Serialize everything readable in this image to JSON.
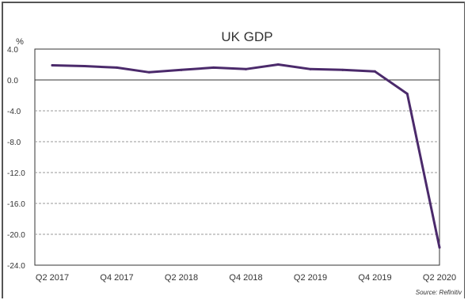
{
  "chart_data": {
    "type": "line",
    "title": "UK GDP",
    "y_unit_label": "%",
    "ylim": [
      -24.0,
      4.0
    ],
    "y_ticks": [
      "4.0",
      "0.0",
      "-4.0",
      "-8.0",
      "-12.0",
      "-16.0",
      "-20.0",
      "-24.0"
    ],
    "y_tick_values": [
      4,
      0,
      -4,
      -8,
      -12,
      -16,
      -20,
      -24
    ],
    "x": [
      "Q2 2017",
      "Q3 2017",
      "Q4 2017",
      "Q1 2018",
      "Q2 2018",
      "Q3 2018",
      "Q4 2018",
      "Q1 2019",
      "Q2 2019",
      "Q3 2019",
      "Q4 2019",
      "Q1 2020",
      "Q2 2020"
    ],
    "x_tick_labels": [
      "Q2 2017",
      "",
      "Q4 2017",
      "",
      "Q2 2018",
      "",
      "Q4 2018",
      "",
      "Q2 2019",
      "",
      "Q4 2019",
      "",
      "Q2 2020"
    ],
    "series": [
      {
        "values": [
          1.9,
          1.8,
          1.6,
          1.0,
          1.3,
          1.6,
          1.4,
          2.0,
          1.4,
          1.3,
          1.1,
          -1.8,
          -21.7
        ]
      }
    ],
    "grid": "horizontal dashed",
    "source": "Source: Refinitiv",
    "colors": {
      "line": "#4b2a6b",
      "grid": "#999999",
      "zero_line": "#333333"
    }
  }
}
